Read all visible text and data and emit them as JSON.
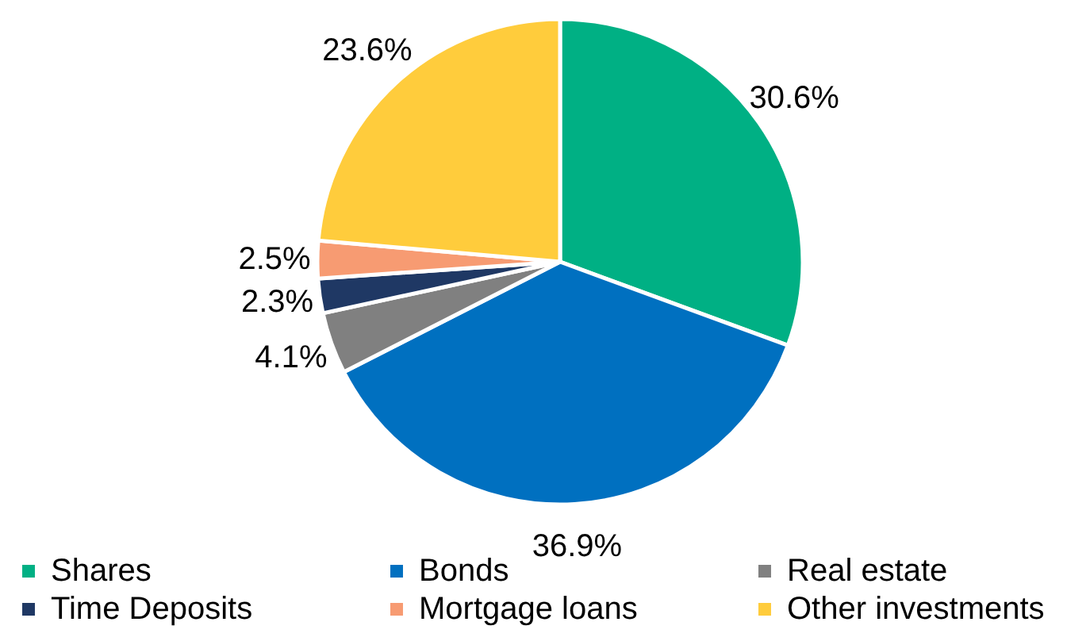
{
  "chart_data": {
    "type": "pie",
    "categories": [
      "Shares",
      "Bonds",
      "Real estate",
      "Time Deposits",
      "Mortgage loans",
      "Other investments"
    ],
    "values": [
      30.6,
      36.9,
      4.1,
      2.3,
      2.5,
      23.6
    ],
    "colors": [
      "#00b084",
      "#0070c0",
      "#808080",
      "#1f3864",
      "#f79b72",
      "#ffcc3c"
    ],
    "value_labels": [
      "30.6%",
      "36.9%",
      "4.1%",
      "2.3%",
      "2.5%",
      "23.6%"
    ],
    "legend": "bottom"
  }
}
